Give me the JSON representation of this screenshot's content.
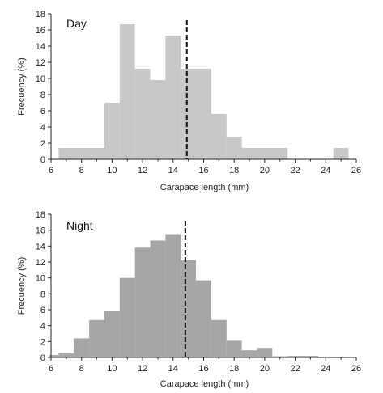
{
  "chart_data": [
    {
      "type": "bar",
      "panel_label": "Day",
      "xlabel": "Carapace length (mm)",
      "ylabel": "Frecuency (%)",
      "xlim": [
        6,
        26
      ],
      "ylim": [
        0,
        18
      ],
      "xticks": [
        6,
        8,
        10,
        12,
        14,
        16,
        18,
        20,
        22,
        24,
        26
      ],
      "yticks": [
        0,
        2,
        4,
        6,
        8,
        10,
        12,
        14,
        16,
        18
      ],
      "bin_width": 1,
      "bins": [
        {
          "x0": 6.5,
          "x1": 9.5,
          "value": 1.4
        },
        {
          "x0": 9.5,
          "x1": 10.5,
          "value": 7.0
        },
        {
          "x0": 10.5,
          "x1": 11.5,
          "value": 16.7
        },
        {
          "x0": 11.5,
          "x1": 12.5,
          "value": 11.2
        },
        {
          "x0": 12.5,
          "x1": 13.5,
          "value": 9.8
        },
        {
          "x0": 13.5,
          "x1": 14.5,
          "value": 15.3
        },
        {
          "x0": 14.5,
          "x1": 15.5,
          "value": 11.2
        },
        {
          "x0": 15.5,
          "x1": 16.5,
          "value": 11.2
        },
        {
          "x0": 16.5,
          "x1": 17.5,
          "value": 5.6
        },
        {
          "x0": 17.5,
          "x1": 18.5,
          "value": 2.8
        },
        {
          "x0": 18.5,
          "x1": 21.5,
          "value": 1.4
        },
        {
          "x0": 21.5,
          "x1": 24.5,
          "value": 0
        },
        {
          "x0": 24.5,
          "x1": 25.5,
          "value": 1.4
        }
      ],
      "reference_line_x": 14.9,
      "bar_color": "#c8c8c8",
      "grid": false
    },
    {
      "type": "bar",
      "panel_label": "Night",
      "xlabel": "Carapace length (mm)",
      "ylabel": "Frecuency (%)",
      "xlim": [
        6,
        26
      ],
      "ylim": [
        0,
        18
      ],
      "xticks": [
        6,
        8,
        10,
        12,
        14,
        16,
        18,
        20,
        22,
        24,
        26
      ],
      "yticks": [
        0,
        2,
        4,
        6,
        8,
        10,
        12,
        14,
        16,
        18
      ],
      "bin_width": 1,
      "bins": [
        {
          "x0": 5.5,
          "x1": 6.5,
          "value": 0.3
        },
        {
          "x0": 6.5,
          "x1": 7.5,
          "value": 0.5
        },
        {
          "x0": 7.5,
          "x1": 8.5,
          "value": 2.4
        },
        {
          "x0": 8.5,
          "x1": 9.5,
          "value": 4.7
        },
        {
          "x0": 9.5,
          "x1": 10.5,
          "value": 5.9
        },
        {
          "x0": 10.5,
          "x1": 11.5,
          "value": 10.0
        },
        {
          "x0": 11.5,
          "x1": 12.5,
          "value": 13.8
        },
        {
          "x0": 12.5,
          "x1": 13.5,
          "value": 14.7
        },
        {
          "x0": 13.5,
          "x1": 14.5,
          "value": 15.5
        },
        {
          "x0": 14.5,
          "x1": 15.5,
          "value": 12.2
        },
        {
          "x0": 15.5,
          "x1": 16.5,
          "value": 9.7
        },
        {
          "x0": 16.5,
          "x1": 17.5,
          "value": 4.7
        },
        {
          "x0": 17.5,
          "x1": 18.5,
          "value": 2.1
        },
        {
          "x0": 18.5,
          "x1": 19.5,
          "value": 0.9
        },
        {
          "x0": 19.5,
          "x1": 20.5,
          "value": 1.2
        },
        {
          "x0": 20.5,
          "x1": 21.5,
          "value": 0.15
        },
        {
          "x0": 21.5,
          "x1": 22.5,
          "value": 0.2
        },
        {
          "x0": 22.5,
          "x1": 23.5,
          "value": 0.2
        }
      ],
      "reference_line_x": 14.8,
      "bar_color": "#a6a6a6",
      "grid": false
    }
  ]
}
